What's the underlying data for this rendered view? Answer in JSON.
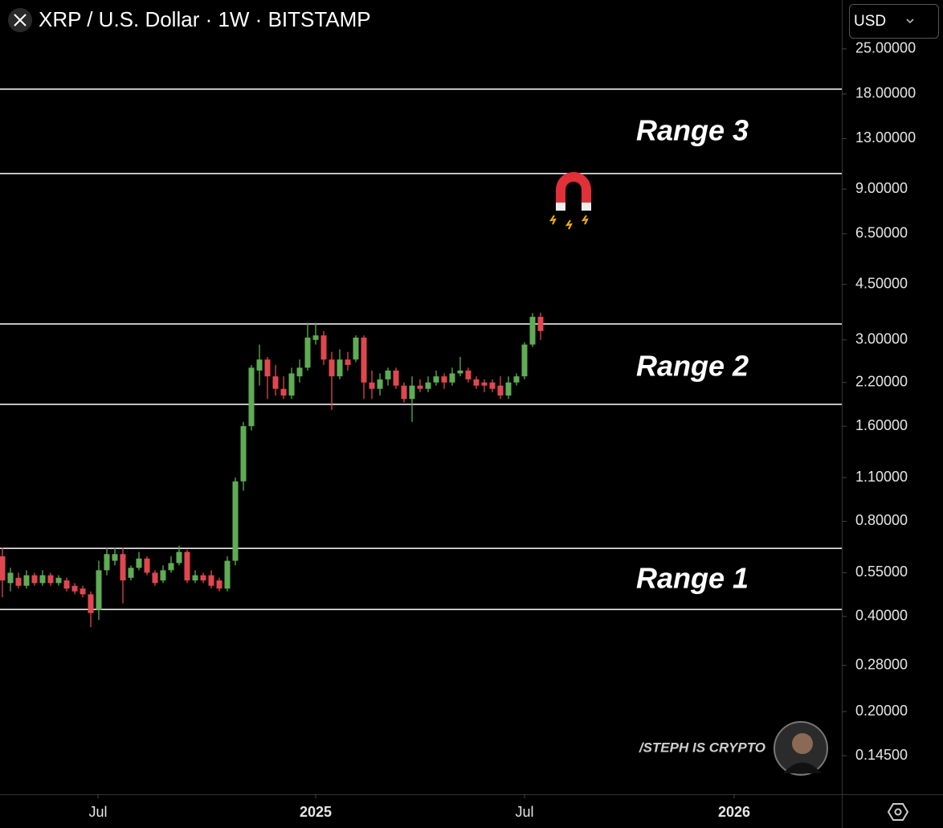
{
  "chart_data": {
    "type": "candlestick",
    "title": "XRP / U.S. Dollar · 1W · BITSTAMP",
    "currency": "USD",
    "watermark": "/STEPH IS CRYPTO",
    "log_scale": true,
    "up_color": "#5fac54",
    "down_color": "#e0474f",
    "level_color": "#ffffff",
    "series": {
      "open": [
        0.62,
        0.51,
        0.53,
        0.5,
        0.54,
        0.51,
        0.54,
        0.51,
        0.52,
        0.5,
        0.49,
        0.47,
        0.42,
        0.56,
        0.6,
        0.63,
        0.53,
        0.57,
        0.61,
        0.55,
        0.52,
        0.56,
        0.59,
        0.64,
        0.52,
        0.54,
        0.54,
        0.52,
        0.49,
        0.6,
        1.07,
        1.6,
        2.4,
        2.6,
        2.3,
        2.1,
        2.0,
        2.3,
        2.45,
        3.0,
        3.1,
        2.6,
        2.3,
        2.6,
        2.6,
        3.05,
        2.2,
        2.1,
        2.25,
        2.4,
        2.15,
        1.95,
        2.15,
        2.1,
        2.2,
        2.3,
        2.2,
        2.35,
        2.4,
        2.25,
        2.2,
        2.2,
        2.15,
        2.0,
        2.2,
        2.3,
        2.9,
        3.55
      ],
      "high": [
        0.66,
        0.57,
        0.55,
        0.56,
        0.55,
        0.56,
        0.55,
        0.54,
        0.53,
        0.51,
        0.5,
        0.48,
        0.6,
        0.66,
        0.66,
        0.66,
        0.58,
        0.64,
        0.62,
        0.56,
        0.58,
        0.62,
        0.67,
        0.65,
        0.56,
        0.55,
        0.56,
        0.53,
        0.62,
        1.1,
        1.65,
        2.5,
        2.9,
        2.65,
        2.5,
        2.3,
        2.45,
        2.6,
        3.4,
        3.4,
        3.2,
        2.75,
        2.8,
        2.75,
        3.1,
        3.1,
        2.4,
        2.35,
        2.45,
        2.45,
        2.2,
        2.3,
        2.25,
        2.3,
        2.4,
        2.35,
        2.45,
        2.65,
        2.45,
        2.3,
        2.25,
        2.25,
        2.3,
        2.3,
        2.35,
        2.95,
        3.65,
        3.66
      ],
      "low": [
        0.46,
        0.48,
        0.49,
        0.49,
        0.5,
        0.5,
        0.5,
        0.5,
        0.48,
        0.47,
        0.46,
        0.37,
        0.39,
        0.54,
        0.58,
        0.44,
        0.52,
        0.56,
        0.54,
        0.5,
        0.51,
        0.55,
        0.58,
        0.51,
        0.51,
        0.51,
        0.49,
        0.48,
        0.48,
        0.58,
        1.0,
        1.55,
        2.15,
        1.95,
        2.0,
        1.95,
        1.95,
        2.2,
        2.4,
        2.9,
        2.5,
        1.8,
        2.25,
        2.4,
        2.55,
        1.95,
        1.95,
        2.0,
        2.15,
        2.1,
        1.9,
        1.65,
        2.05,
        2.05,
        2.15,
        2.1,
        2.15,
        2.3,
        2.2,
        2.1,
        2.05,
        2.05,
        1.95,
        1.95,
        2.15,
        2.25,
        2.85,
        3.0
      ],
      "close": [
        0.52,
        0.55,
        0.5,
        0.54,
        0.51,
        0.54,
        0.51,
        0.53,
        0.49,
        0.48,
        0.47,
        0.41,
        0.56,
        0.63,
        0.63,
        0.52,
        0.57,
        0.61,
        0.55,
        0.51,
        0.56,
        0.59,
        0.64,
        0.52,
        0.54,
        0.52,
        0.5,
        0.49,
        0.6,
        1.07,
        1.6,
        2.45,
        2.6,
        2.3,
        2.1,
        2.0,
        2.35,
        2.45,
        3.05,
        3.1,
        2.6,
        2.3,
        2.6,
        2.5,
        3.05,
        2.2,
        2.1,
        2.25,
        2.4,
        2.15,
        1.95,
        2.15,
        2.1,
        2.2,
        2.3,
        2.2,
        2.35,
        2.4,
        2.25,
        2.15,
        2.15,
        2.1,
        2.0,
        2.2,
        2.3,
        2.9,
        3.55,
        3.2
      ]
    },
    "levels": [
      18.65,
      10.08,
      3.37,
      1.876,
      0.657,
      0.421
    ],
    "annotations": [
      "Range 3",
      "Range 2",
      "Range 1"
    ],
    "ylim": [
      0.1095,
      35.7
    ],
    "yticks": [
      {
        "value": 25,
        "label": "25.00000"
      },
      {
        "value": 18,
        "label": "18.00000"
      },
      {
        "value": 13,
        "label": "13.00000"
      },
      {
        "value": 9,
        "label": "9.00000"
      },
      {
        "value": 6.5,
        "label": "6.50000"
      },
      {
        "value": 4.5,
        "label": "4.50000"
      },
      {
        "value": 3,
        "label": "3.00000"
      },
      {
        "value": 2.2,
        "label": "2.20000"
      },
      {
        "value": 1.6,
        "label": "1.60000"
      },
      {
        "value": 1.1,
        "label": "1.10000"
      },
      {
        "value": 0.8,
        "label": "0.80000"
      },
      {
        "value": 0.55,
        "label": "0.55000"
      },
      {
        "value": 0.4,
        "label": "0.40000"
      },
      {
        "value": 0.28,
        "label": "0.28000"
      },
      {
        "value": 0.2,
        "label": "0.20000"
      },
      {
        "value": 0.145,
        "label": "0.14500"
      }
    ],
    "xlim": [
      -0.3,
      104.5
    ],
    "xticks": [
      {
        "value": 11.9,
        "label": "Jul"
      },
      {
        "value": 39,
        "label": "2025"
      },
      {
        "value": 65,
        "label": "Jul"
      },
      {
        "value": 91.1,
        "label": "2026"
      }
    ]
  }
}
